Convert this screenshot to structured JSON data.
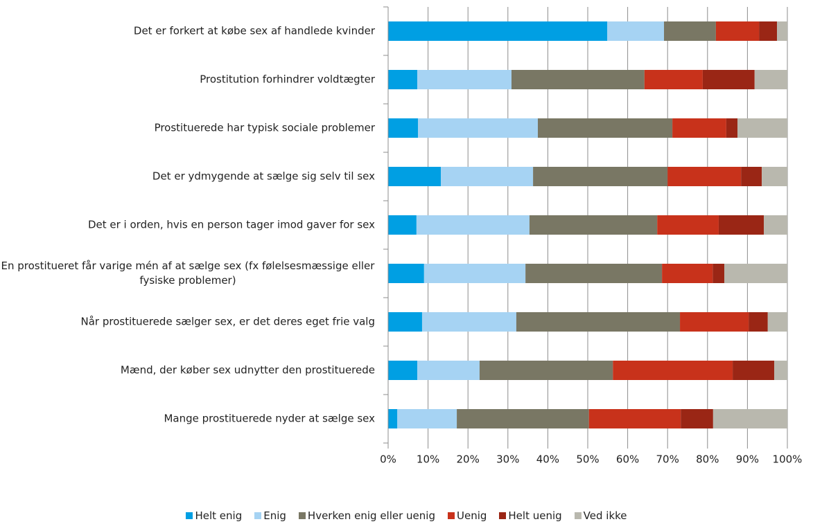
{
  "chart_data": {
    "type": "stacked_barh",
    "categories": [
      "Det er forkert at købe sex af handlede kvinder",
      "Prostitution forhindrer voldtægter",
      "Prostituerede har typisk sociale problemer",
      "Det er ydmygende at sælge sig selv til sex",
      "Det er i orden, hvis en person tager imod gaver for sex",
      "En prostitueret får varige mén af at sælge sex (fx følelsesmæssige eller fysiske problemer)",
      "Når prostituerede sælger sex, er det deres eget frie valg",
      "Mænd, der køber sex udnytter den prostituerede",
      "Mange prostituerede nyder at sælge sex"
    ],
    "series": [
      {
        "name": "Helt enig",
        "color": "#009fe3",
        "values": [
          54.9,
          7.3,
          7.5,
          13.2,
          7.1,
          9.0,
          8.5,
          7.3,
          2.3
        ]
      },
      {
        "name": "Enig",
        "color": "#a6d3f3",
        "values": [
          14.2,
          23.6,
          30.0,
          23.1,
          28.3,
          25.4,
          23.6,
          15.6,
          14.9
        ]
      },
      {
        "name": "Hverken enig eller uenig",
        "color": "#797764",
        "values": [
          13.0,
          33.3,
          33.7,
          33.7,
          32.0,
          34.2,
          41.0,
          33.4,
          33.1
        ]
      },
      {
        "name": "Uenig",
        "color": "#c8321b",
        "values": [
          10.8,
          14.6,
          13.5,
          18.4,
          15.4,
          12.7,
          17.2,
          30.0,
          23.0
        ]
      },
      {
        "name": "Helt uenig",
        "color": "#9a2615",
        "values": [
          4.5,
          13.0,
          2.8,
          5.2,
          11.3,
          2.9,
          4.8,
          10.4,
          8.1
        ]
      },
      {
        "name": "Ved ikke",
        "color": "#b9b8ae",
        "values": [
          2.6,
          8.2,
          12.5,
          6.4,
          5.9,
          15.8,
          4.9,
          3.3,
          18.6
        ]
      }
    ],
    "xlim": [
      0,
      100
    ],
    "xticks": [
      {
        "value": 0,
        "label": "0%"
      },
      {
        "value": 10,
        "label": "10%"
      },
      {
        "value": 20,
        "label": "20%"
      },
      {
        "value": 30,
        "label": "30%"
      },
      {
        "value": 40,
        "label": "40%"
      },
      {
        "value": 50,
        "label": "50%"
      },
      {
        "value": 60,
        "label": "60%"
      },
      {
        "value": 70,
        "label": "70%"
      },
      {
        "value": 80,
        "label": "80%"
      },
      {
        "value": 90,
        "label": "90%"
      },
      {
        "value": 100,
        "label": "100%"
      }
    ],
    "grid": true,
    "legend": "bottom"
  }
}
